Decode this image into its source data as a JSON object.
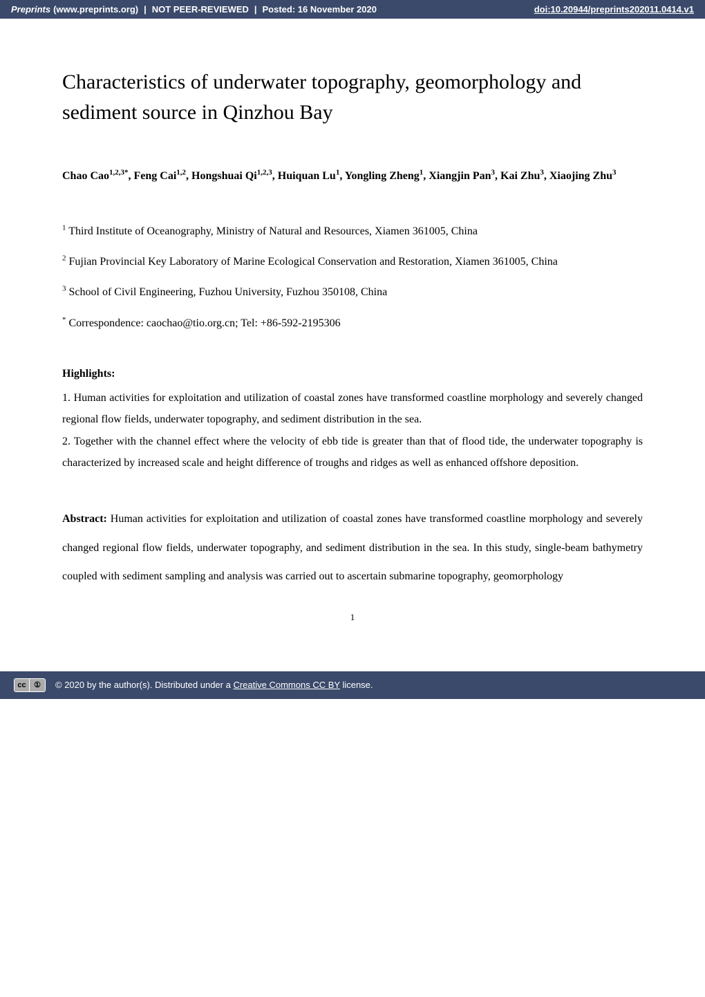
{
  "header": {
    "journal": "Preprints",
    "site": "(www.preprints.org)",
    "peer": "NOT PEER-REVIEWED",
    "posted": "Posted: 16 November 2020",
    "doi": "doi:10.20944/preprints202011.0414.v1"
  },
  "title": "Characteristics of underwater topography, geomorphology and sediment source in Qinzhou Bay",
  "authors_html": "Chao Cao<sup>1,2,3*</sup>, Feng Cai<sup>1,2</sup>, Hongshuai Qi<sup>1,2,3</sup>, Huiquan Lu<sup>1</sup>, Yongling Zheng<sup>1</sup>, Xiangjin Pan<sup>3</sup>, Kai Zhu<sup>3</sup>, Xiaojing Zhu<sup>3</sup>",
  "affiliations": [
    "<sup>1</sup> Third Institute of Oceanography, Ministry of Natural and Resources, Xiamen 361005, China",
    "<sup>2</sup> Fujian Provincial Key Laboratory of Marine Ecological Conservation and Restoration, Xiamen 361005, China",
    "<sup>3</sup> School of Civil Engineering, Fuzhou University, Fuzhou 350108, China",
    "<sup>*</sup> Correspondence: caochao@tio.org.cn; Tel: +86-592-2195306"
  ],
  "highlights_label": "Highlights:",
  "highlights": [
    "1. Human activities for exploitation and utilization of coastal zones have transformed coastline morphology and severely changed regional flow fields, underwater topography, and sediment distribution in the sea.",
    "2. Together with the channel effect where the velocity of ebb tide is greater than that of flood tide, the underwater topography is characterized by increased scale and height difference of troughs and ridges as well as enhanced offshore deposition."
  ],
  "abstract_label": "Abstract:",
  "abstract_text": " Human activities for exploitation and utilization of coastal zones have transformed coastline morphology and severely changed regional flow fields, underwater topography, and sediment distribution in the sea. In this study, single-beam bathymetry coupled with sediment sampling and analysis was carried out to ascertain submarine topography, geomorphology",
  "page_number": "1",
  "footer": {
    "prefix": "© 2020 by the author(s). Distributed under a ",
    "link": "Creative Commons CC BY",
    "suffix": " license."
  },
  "colors": {
    "header_bg": "#3b4a6b",
    "header_text": "#ffffff",
    "body_bg": "#ffffff",
    "body_text": "#000000"
  },
  "typography": {
    "title_fontsize": 30,
    "body_fontsize": 16,
    "header_fontsize": 13,
    "font_family_body": "Times New Roman",
    "font_family_header": "Arial"
  }
}
